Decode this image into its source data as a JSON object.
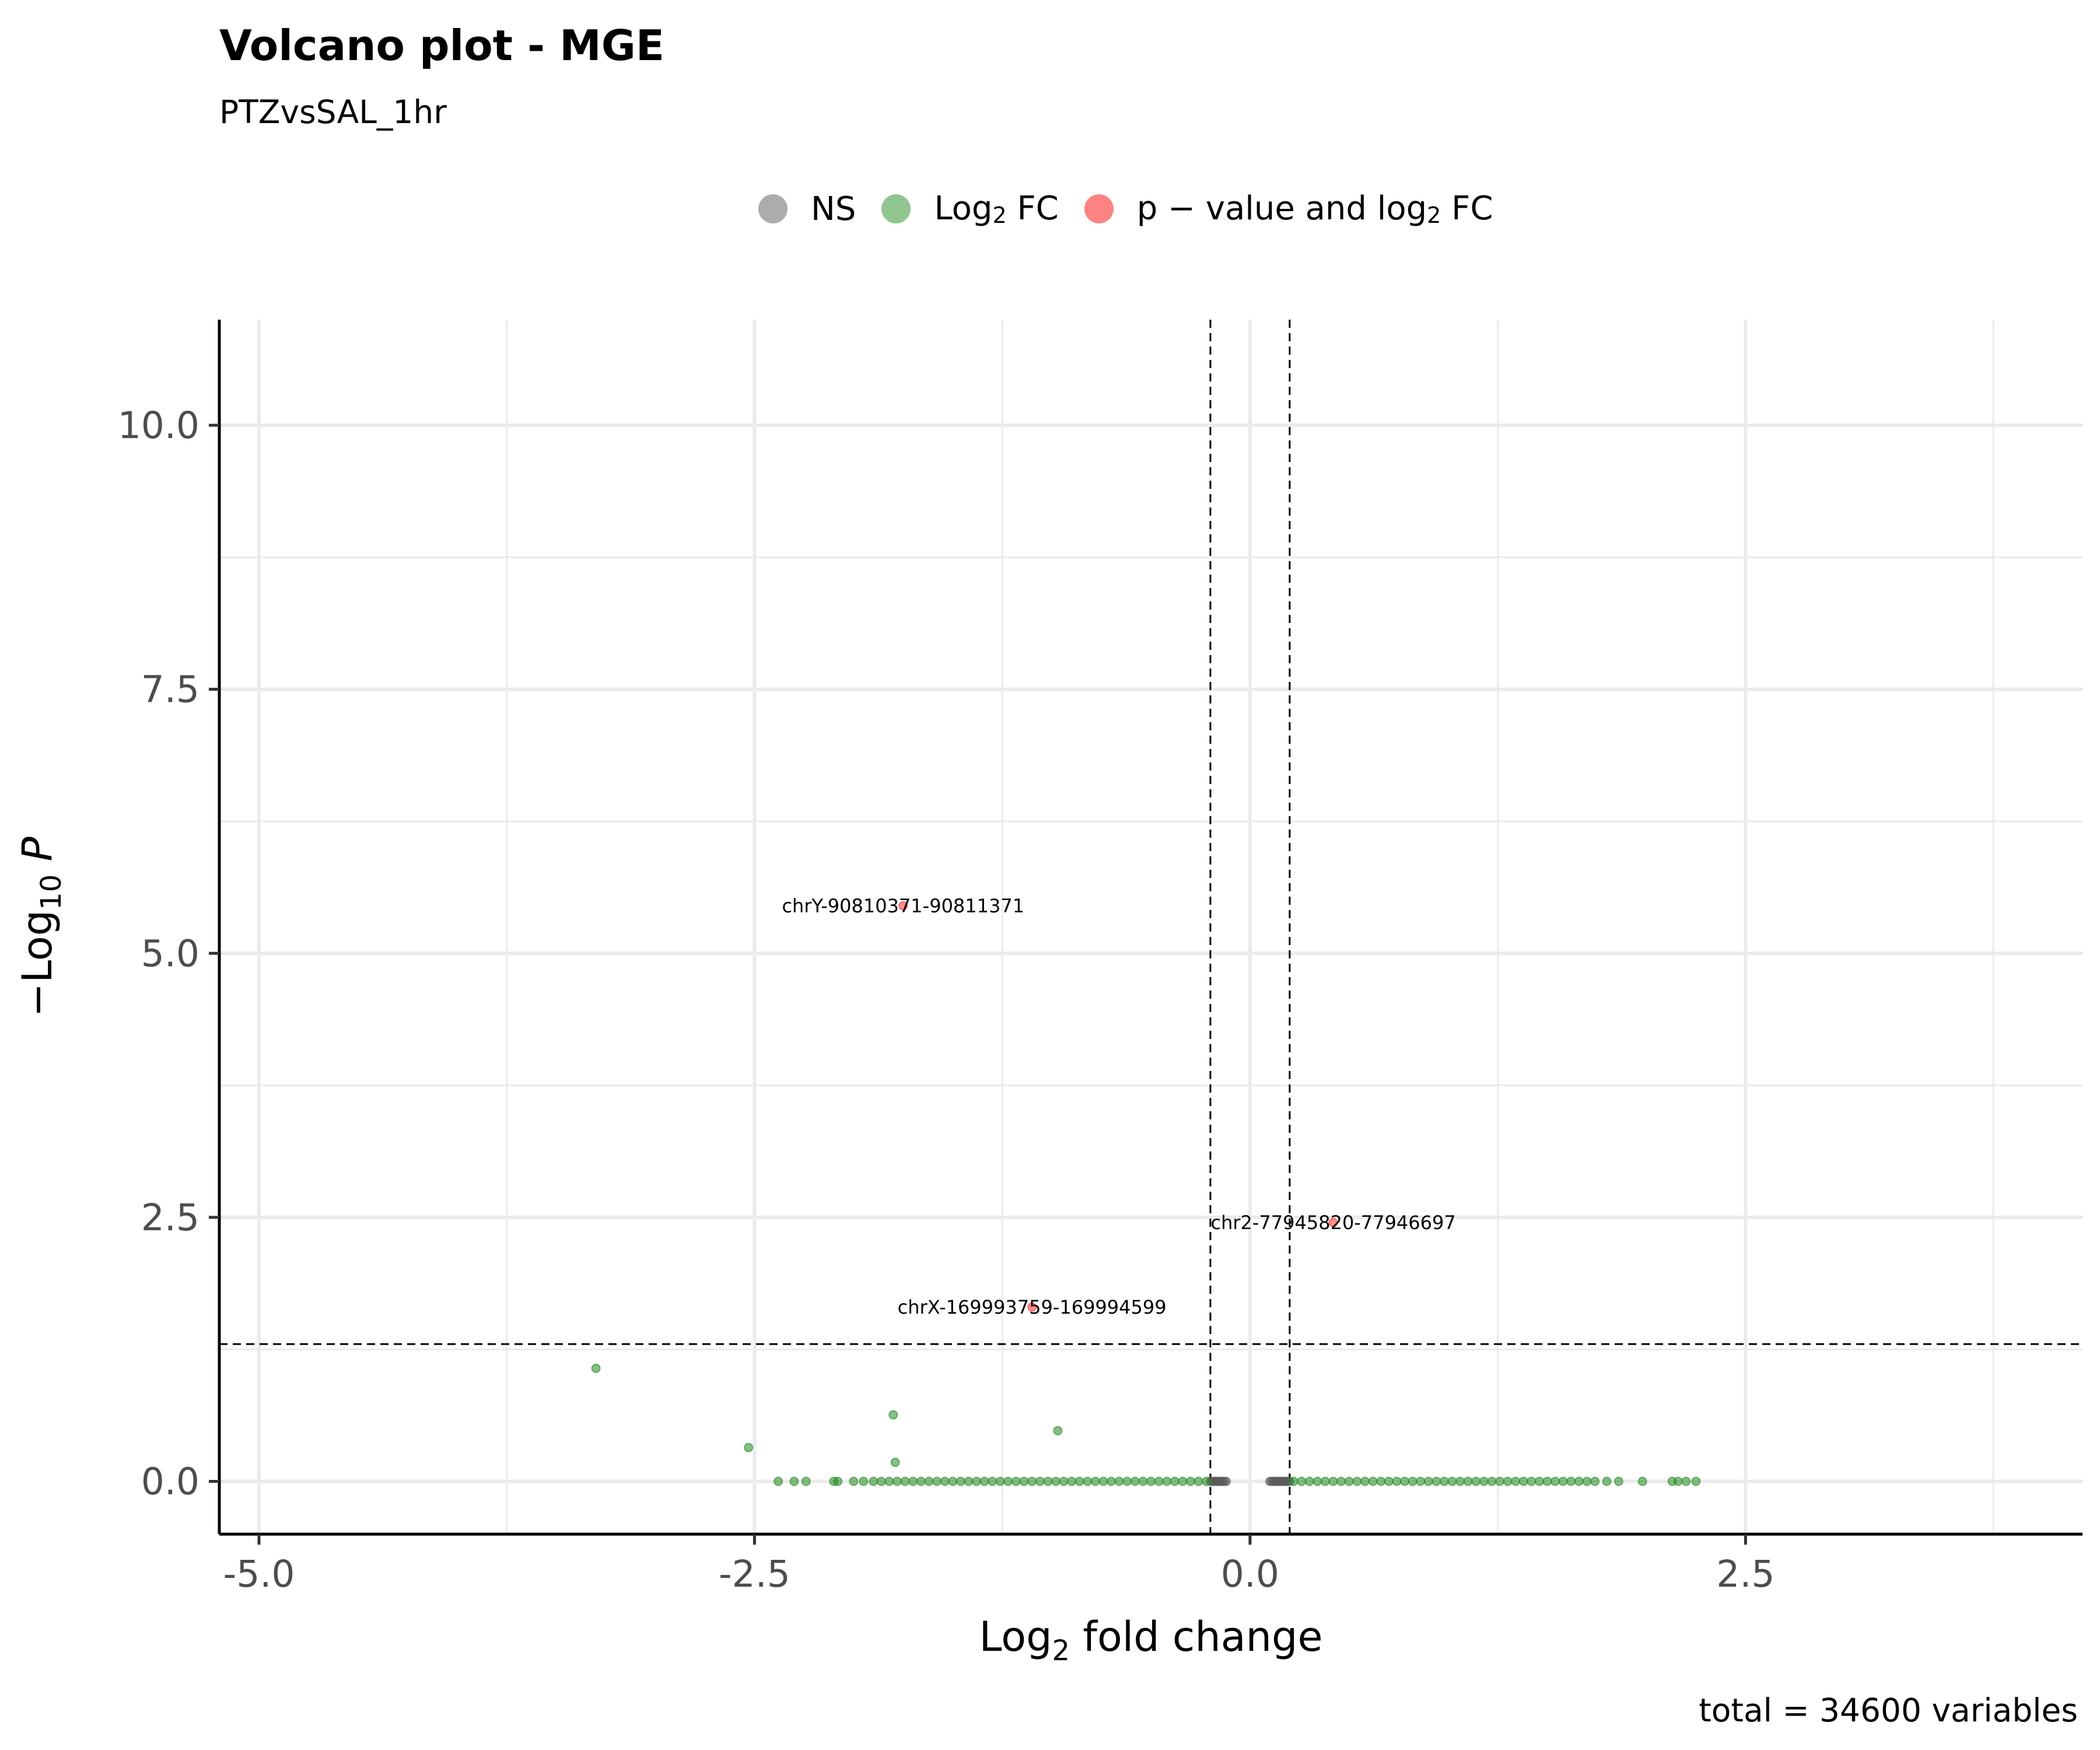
{
  "title": "Volcano plot - MGE",
  "subtitle": "PTZvsSAL_1hr",
  "caption": "total = 34600 variables",
  "colors": {
    "ns": "#595959",
    "log2fc": "#228B22",
    "significant": "#FF3030",
    "grid": "#ebebeb",
    "axis": "#000000"
  },
  "legend": {
    "position": "top",
    "items": [
      {
        "key": "ns",
        "label": "NS"
      },
      {
        "key": "log2fc",
        "label_main": "Log",
        "label_sub": "2",
        "label_tail": " FC"
      },
      {
        "key": "significant",
        "label_main": "p − value and log",
        "label_sub": "2",
        "label_tail": " FC"
      }
    ]
  },
  "chart_data": {
    "type": "scatter",
    "title": "Volcano plot - MGE",
    "subtitle": "PTZvsSAL_1hr",
    "xlabel": {
      "main": "Log",
      "sub": "2",
      "tail": " fold change"
    },
    "ylabel": {
      "main": "−Log",
      "sub": "10",
      "tail": " P"
    },
    "xlim": [
      -5.2,
      4.2
    ],
    "ylim": [
      -0.5,
      11.0
    ],
    "x_ticks": [
      -5.0,
      -2.5,
      0.0,
      2.5
    ],
    "x_tick_labels": [
      "-5.0",
      "-2.5",
      "0.0",
      "2.5"
    ],
    "y_ticks": [
      0.0,
      2.5,
      5.0,
      7.5,
      10.0
    ],
    "y_tick_labels": [
      "0.0",
      "2.5",
      "5.0",
      "7.5",
      "10.0"
    ],
    "grid": true,
    "thresholds": {
      "fc_cutoff": [
        -0.2,
        0.2
      ],
      "p_cutoff_neglog10": 1.3
    },
    "labeled_points": [
      {
        "label": "chrY-90810371-90811371",
        "x": -1.75,
        "y": 5.45
      },
      {
        "label": "chr2-77945820-77946697",
        "x": 0.42,
        "y": 2.45
      },
      {
        "label": "chrX-169993759-169994599",
        "x": -1.1,
        "y": 1.65
      }
    ],
    "series": [
      {
        "name": "NS",
        "color_key": "ns",
        "points": [
          [
            -0.2,
            0
          ],
          [
            -0.19,
            0
          ],
          [
            -0.18,
            0
          ],
          [
            -0.17,
            0
          ],
          [
            -0.16,
            0
          ],
          [
            -0.15,
            0
          ],
          [
            -0.14,
            0
          ],
          [
            -0.13,
            0
          ],
          [
            -0.12,
            0
          ],
          [
            0.1,
            0
          ],
          [
            0.11,
            0
          ],
          [
            0.12,
            0
          ],
          [
            0.13,
            0
          ],
          [
            0.14,
            0
          ],
          [
            0.15,
            0
          ],
          [
            0.16,
            0
          ],
          [
            0.17,
            0
          ],
          [
            0.18,
            0
          ],
          [
            0.19,
            0
          ],
          [
            0.2,
            0
          ]
        ]
      },
      {
        "name": "Log2 FC",
        "color_key": "log2fc",
        "points": [
          [
            -3.3,
            1.07
          ],
          [
            -1.8,
            0.63
          ],
          [
            -0.97,
            0.48
          ],
          [
            -2.53,
            0.32
          ],
          [
            -1.79,
            0.18
          ],
          [
            -2.38,
            0
          ],
          [
            -2.3,
            0
          ],
          [
            -2.24,
            0
          ],
          [
            -2.1,
            0
          ],
          [
            -2.08,
            0
          ],
          [
            -2.0,
            0
          ],
          [
            -1.95,
            0
          ],
          [
            -1.9,
            0
          ],
          [
            -1.86,
            0
          ],
          [
            -1.82,
            0
          ],
          [
            -1.78,
            0
          ],
          [
            -1.74,
            0
          ],
          [
            -1.7,
            0
          ],
          [
            -1.66,
            0
          ],
          [
            -1.62,
            0
          ],
          [
            -1.58,
            0
          ],
          [
            -1.54,
            0
          ],
          [
            -1.5,
            0
          ],
          [
            -1.46,
            0
          ],
          [
            -1.42,
            0
          ],
          [
            -1.38,
            0
          ],
          [
            -1.34,
            0
          ],
          [
            -1.3,
            0
          ],
          [
            -1.26,
            0
          ],
          [
            -1.22,
            0
          ],
          [
            -1.18,
            0
          ],
          [
            -1.14,
            0
          ],
          [
            -1.1,
            0
          ],
          [
            -1.06,
            0
          ],
          [
            -1.02,
            0
          ],
          [
            -0.98,
            0
          ],
          [
            -0.94,
            0
          ],
          [
            -0.9,
            0
          ],
          [
            -0.86,
            0
          ],
          [
            -0.82,
            0
          ],
          [
            -0.78,
            0
          ],
          [
            -0.74,
            0
          ],
          [
            -0.7,
            0
          ],
          [
            -0.66,
            0
          ],
          [
            -0.62,
            0
          ],
          [
            -0.58,
            0
          ],
          [
            -0.54,
            0
          ],
          [
            -0.5,
            0
          ],
          [
            -0.46,
            0
          ],
          [
            -0.42,
            0
          ],
          [
            -0.38,
            0
          ],
          [
            -0.34,
            0
          ],
          [
            -0.3,
            0
          ],
          [
            -0.26,
            0
          ],
          [
            -0.22,
            0
          ],
          [
            0.22,
            0
          ],
          [
            0.26,
            0
          ],
          [
            0.3,
            0
          ],
          [
            0.34,
            0
          ],
          [
            0.38,
            0
          ],
          [
            0.42,
            0
          ],
          [
            0.46,
            0
          ],
          [
            0.5,
            0
          ],
          [
            0.54,
            0
          ],
          [
            0.58,
            0
          ],
          [
            0.62,
            0
          ],
          [
            0.66,
            0
          ],
          [
            0.7,
            0
          ],
          [
            0.74,
            0
          ],
          [
            0.78,
            0
          ],
          [
            0.82,
            0
          ],
          [
            0.86,
            0
          ],
          [
            0.9,
            0
          ],
          [
            0.94,
            0
          ],
          [
            0.98,
            0
          ],
          [
            1.02,
            0
          ],
          [
            1.06,
            0
          ],
          [
            1.1,
            0
          ],
          [
            1.14,
            0
          ],
          [
            1.18,
            0
          ],
          [
            1.22,
            0
          ],
          [
            1.26,
            0
          ],
          [
            1.3,
            0
          ],
          [
            1.34,
            0
          ],
          [
            1.38,
            0
          ],
          [
            1.42,
            0
          ],
          [
            1.46,
            0
          ],
          [
            1.5,
            0
          ],
          [
            1.54,
            0
          ],
          [
            1.58,
            0
          ],
          [
            1.62,
            0
          ],
          [
            1.66,
            0
          ],
          [
            1.7,
            0
          ],
          [
            1.74,
            0
          ],
          [
            1.8,
            0
          ],
          [
            1.86,
            0
          ],
          [
            1.98,
            0
          ],
          [
            2.13,
            0
          ],
          [
            2.16,
            0
          ],
          [
            2.2,
            0
          ],
          [
            2.25,
            0
          ]
        ]
      },
      {
        "name": "p - value and log2 FC",
        "color_key": "significant",
        "points": [
          [
            -1.75,
            5.45
          ],
          [
            0.42,
            2.45
          ],
          [
            -1.1,
            1.65
          ]
        ]
      }
    ]
  }
}
